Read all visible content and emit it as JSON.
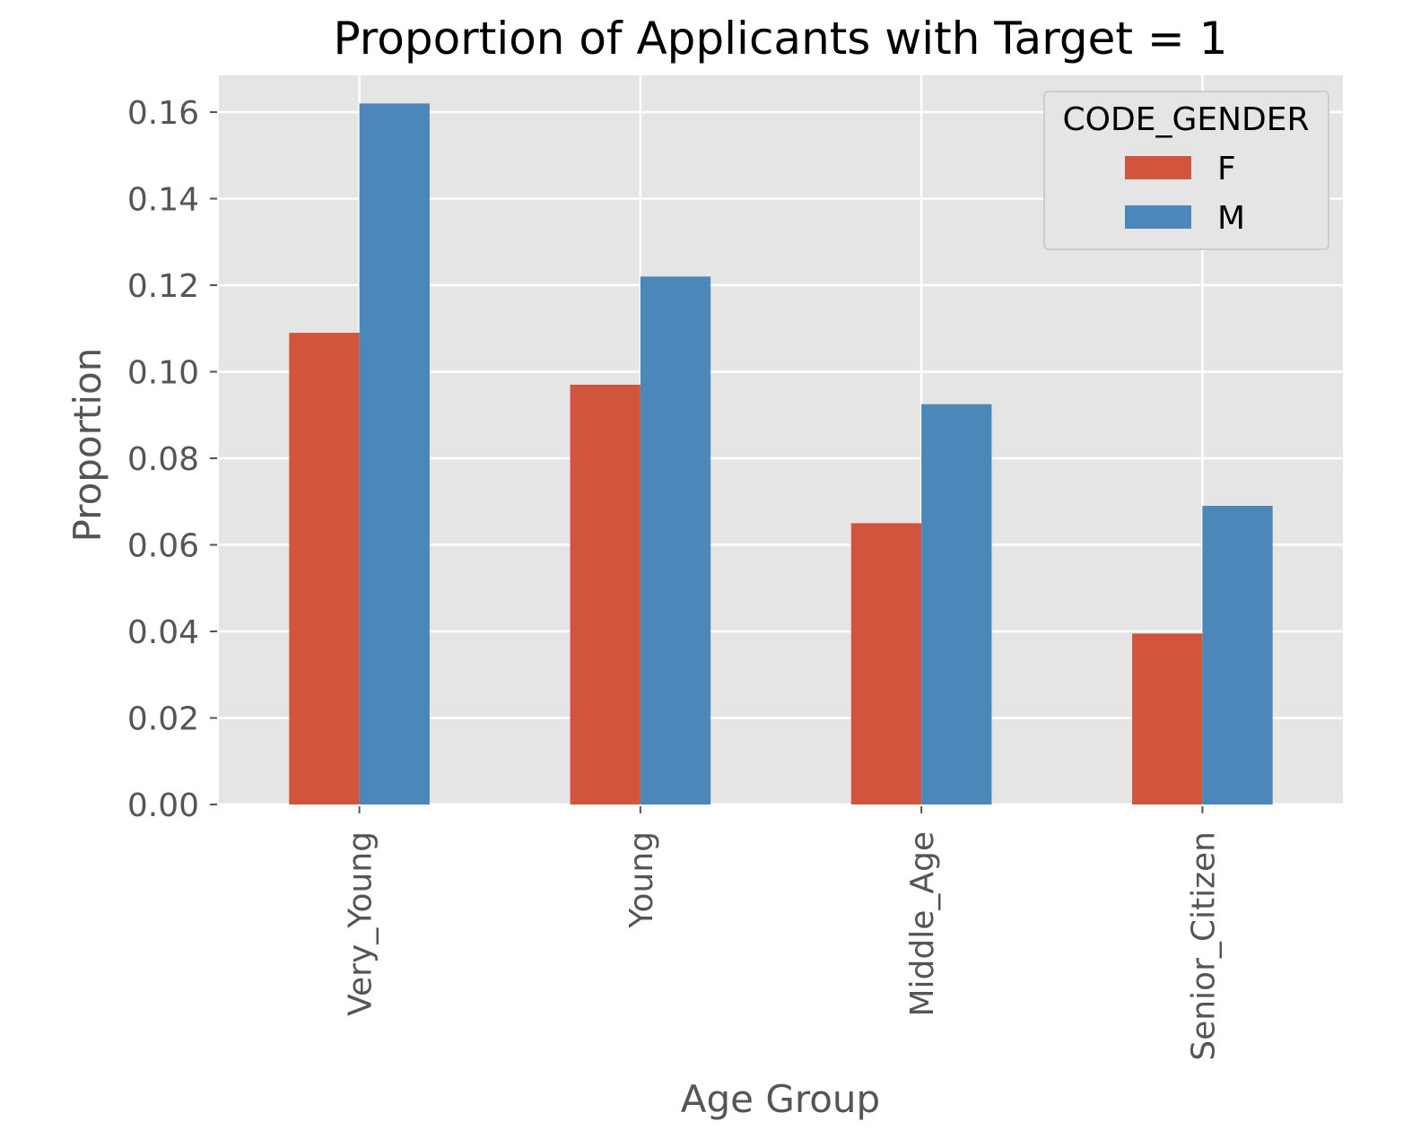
{
  "chart_data": {
    "type": "bar",
    "title": "Proportion of Applicants with Target = 1",
    "xlabel": "Age Group",
    "ylabel": "Proportion",
    "categories": [
      "Very_Young",
      "Young",
      "Middle_Age",
      "Senior_Citizen"
    ],
    "series": [
      {
        "name": "F",
        "color": "#d1553c",
        "values": [
          0.109,
          0.097,
          0.065,
          0.0395
        ]
      },
      {
        "name": "M",
        "color": "#4c87b9",
        "values": [
          0.162,
          0.122,
          0.0925,
          0.069
        ]
      }
    ],
    "ylim": [
      0,
      0.1685
    ],
    "yticks": [
      0.0,
      0.02,
      0.04,
      0.06,
      0.08,
      0.1,
      0.12,
      0.14,
      0.16
    ],
    "ytick_labels": [
      "0.00",
      "0.02",
      "0.04",
      "0.06",
      "0.08",
      "0.10",
      "0.12",
      "0.14",
      "0.16"
    ],
    "legend": {
      "title": "CODE_GENDER",
      "placement": "top-right"
    },
    "grid": true,
    "style": {
      "plot_background": "#e5e5e5",
      "grid_color": "#ffffff",
      "tick_text_color": "#555555",
      "title_color": "#000000"
    }
  }
}
